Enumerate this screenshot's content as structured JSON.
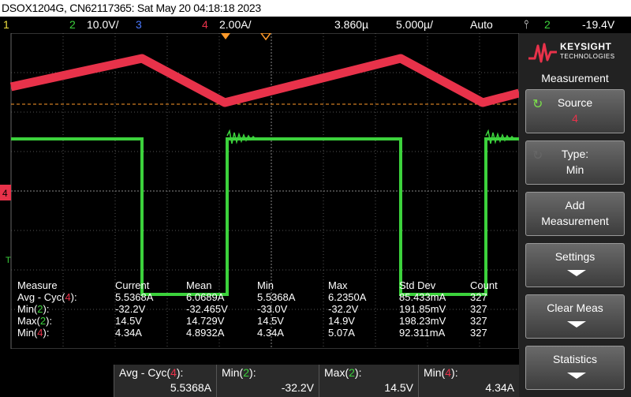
{
  "titlebar": {
    "text": "DSOX1204G, CN62117365: Sat May 20 04:18:18 2023"
  },
  "status": {
    "ch1": "1",
    "ch2": "2",
    "ch2_scale": "10.0V/",
    "ch3": "3",
    "ch4": "4",
    "ch4_scale": "2.00A/",
    "time_delay": "3.860µ",
    "time_scale": "5.000µ/",
    "trigger_mode": "Auto",
    "trigger_icon": "trigger-edge-icon",
    "trigger_channel": "2",
    "trigger_level": "-19.4V"
  },
  "colors": {
    "ch1": "#f0e040",
    "ch2": "#3cd23c",
    "ch3": "#4a78ff",
    "ch4": "#e8324a",
    "grid": "#555555",
    "trigger_marker": "#ff9a2a"
  },
  "markers": {
    "ch4_ground": "4",
    "trigger": "T"
  },
  "measurements": {
    "headers": [
      "Measure",
      "Current",
      "Mean",
      "Min",
      "Max",
      "Std Dev",
      "Count"
    ],
    "rows": [
      {
        "name": "Avg - Cyc(",
        "ch": "4",
        "close": "):",
        "current": "5.5368A",
        "mean": "6.0689A",
        "min": "5.5368A",
        "max": "6.2350A",
        "std": "85.433mA",
        "count": "327"
      },
      {
        "name": "Min(",
        "ch": "2",
        "close": "):",
        "current": "-32.2V",
        "mean": "-32.465V",
        "min": "-33.0V",
        "max": "-32.2V",
        "std": "191.85mV",
        "count": "327"
      },
      {
        "name": "Max(",
        "ch": "2",
        "close": "):",
        "current": "14.5V",
        "mean": "14.729V",
        "min": "14.5V",
        "max": "14.9V",
        "std": "198.23mV",
        "count": "327"
      },
      {
        "name": "Min(",
        "ch": "4",
        "close": "):",
        "current": "4.34A",
        "mean": "4.8932A",
        "min": "4.34A",
        "max": "5.07A",
        "std": "92.311mA",
        "count": "327"
      }
    ]
  },
  "bottom": [
    {
      "label": "Avg - Cyc(",
      "ch": "4",
      "close": "):",
      "value": "5.5368A"
    },
    {
      "label": "Min(",
      "ch": "2",
      "close": "):",
      "value": "-32.2V"
    },
    {
      "label": "Max(",
      "ch": "2",
      "close": "):",
      "value": "14.5V"
    },
    {
      "label": "Min(",
      "ch": "4",
      "close": "):",
      "value": "4.34A"
    }
  ],
  "sidebar": {
    "brand1": "KEYSIGHT",
    "brand2": "TECHNOLOGIES",
    "title": "Measurement",
    "buttons": [
      {
        "l1": "Source",
        "l2": "4",
        "icon": "rotate-knob-icon"
      },
      {
        "l1": "Type:",
        "l2": "Min",
        "icon": "rotate-knob-icon"
      },
      {
        "l1": "Add",
        "l2": "Measurement"
      },
      {
        "l1": "Settings",
        "icon": "down-arrow-icon"
      },
      {
        "l1": "Clear Meas",
        "icon": "down-arrow-icon"
      },
      {
        "l1": "Statistics",
        "icon": "down-arrow-icon"
      }
    ]
  }
}
